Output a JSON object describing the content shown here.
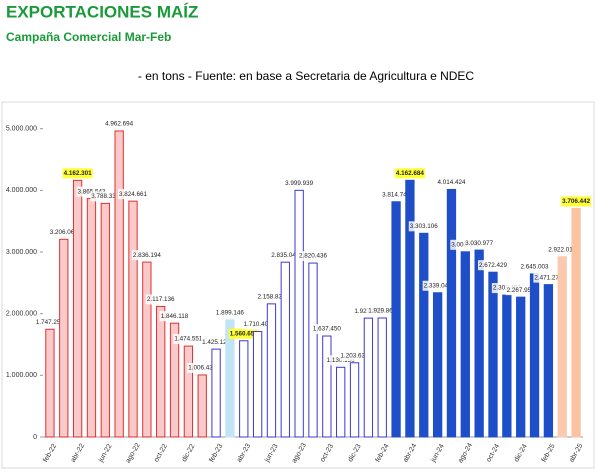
{
  "chart_data": {
    "type": "bar",
    "title": "EXPORTACIONES MAÍZ",
    "subtitle": "Campaña Comercial Mar-Feb",
    "note": "- en tons - Fuente: en base a Secretaria de Agricultura e NDEC",
    "categories": [
      "feb-22",
      null,
      "abr-22",
      null,
      "jun-22",
      null,
      "ago-22",
      null,
      "oct-22",
      null,
      "dic-22",
      null,
      "feb-23",
      null,
      "abr-23",
      null,
      "jun-23",
      null,
      "ago-23",
      null,
      "oct-23",
      null,
      "dic-23",
      null,
      "feb-24",
      null,
      "abr-24",
      null,
      "jun-24",
      null,
      "ago-24",
      null,
      "oct-24",
      null,
      "dic-24",
      null,
      "feb-25",
      null,
      "abr-25"
    ],
    "values": [
      1747254,
      3206063,
      4162301,
      3865543,
      3788333,
      4962694,
      3824661,
      2836194,
      2117136,
      1846118,
      1474551,
      1006431,
      1425123,
      1899146,
      1560652,
      1710407,
      2158831,
      2835046,
      3999939,
      2820436,
      1637450,
      1130156,
      1203638,
      1927706,
      1929868,
      3814748,
      4162684,
      3303106,
      2339049,
      4014424,
      3003000,
      3030977,
      2672429,
      2301490,
      2267959,
      2645003,
      2471276,
      2922019,
      3706442
    ],
    "value_labels": [
      "1.747.254",
      "3.206.063",
      "4.162.301",
      "3.865.543",
      "3.788.333",
      "4.962.694",
      "3.824.661",
      "2.836.194",
      "2.117.136",
      "1.846.118",
      "1.474.551",
      "1.006.431",
      "1.425.123",
      "1.899.146",
      "1.560.652",
      "1.710.407",
      "2.158.831",
      "2.835.046",
      "3.999.939",
      "2.820.436",
      "1.637.450",
      "1.130.156",
      "1.203.638",
      "1.927.706",
      "1.929.868",
      "3.814.748",
      "4.162.684",
      "3.303.106",
      "2.339.049",
      "4.014.424",
      "3.003.000",
      "3.030.977",
      "2.672.429",
      "2.301.490",
      "2.267.959",
      "2.645.003",
      "2.471.276",
      "2.922.019",
      "3.706.442"
    ],
    "colors": [
      "#f9caca",
      "#f9caca",
      "#f9caca",
      "#f9caca",
      "#f9caca",
      "#f9caca",
      "#f9caca",
      "#f9caca",
      "#f9caca",
      "#f9caca",
      "#f9caca",
      "#f9caca",
      "#ffffff",
      "#c2e4f7",
      "#ffffff",
      "#ffffff",
      "#ffffff",
      "#ffffff",
      "#ffffff",
      "#ffffff",
      "#ffffff",
      "#ffffff",
      "#ffffff",
      "#ffffff",
      "#ffffff",
      "#1f4fc8",
      "#1f4fc8",
      "#1f4fc8",
      "#1f4fc8",
      "#1f4fc8",
      "#1f4fc8",
      "#1f4fc8",
      "#1f4fc8",
      "#1f4fc8",
      "#1f4fc8",
      "#1f4fc8",
      "#1f4fc8",
      "#fbc8b0",
      "#fbc2a4"
    ],
    "edge_colors": [
      "#e03030",
      "#e03030",
      "#e03030",
      "#e03030",
      "#e03030",
      "#e03030",
      "#e03030",
      "#e03030",
      "#e03030",
      "#e03030",
      "#e03030",
      "#e03030",
      "#3a3ad0",
      "#c2e4f7",
      "#3a3ad0",
      "#3a3ad0",
      "#3a3ad0",
      "#3a3ad0",
      "#3a3ad0",
      "#3a3ad0",
      "#3a3ad0",
      "#3a3ad0",
      "#3a3ad0",
      "#3a3ad0",
      "#3a3ad0",
      "#1f4fc8",
      "#1f4fc8",
      "#1f4fc8",
      "#1f4fc8",
      "#1f4fc8",
      "#1f4fc8",
      "#1f4fc8",
      "#1f4fc8",
      "#1f4fc8",
      "#1f4fc8",
      "#1f4fc8",
      "#1f4fc8",
      "#fbc8b0",
      "#fbc2a4"
    ],
    "highlighted": [
      false,
      false,
      true,
      false,
      false,
      false,
      false,
      false,
      false,
      false,
      false,
      false,
      false,
      false,
      true,
      false,
      false,
      false,
      false,
      false,
      false,
      false,
      false,
      false,
      false,
      false,
      true,
      false,
      false,
      false,
      false,
      false,
      false,
      false,
      false,
      false,
      false,
      false,
      true
    ],
    "ylim": [
      0,
      5400000
    ],
    "yticks": [
      0,
      {
        "value": 1000000,
        "label": "1.000.000"
      },
      {
        "value": 2000000,
        "label": "2.000.000"
      },
      {
        "value": 3000000,
        "label": "3.000.000"
      },
      {
        "value": 4000000,
        "label": "4.000.000"
      },
      {
        "value": 5000000,
        "label": "5.000.000"
      }
    ],
    "grid": false
  }
}
